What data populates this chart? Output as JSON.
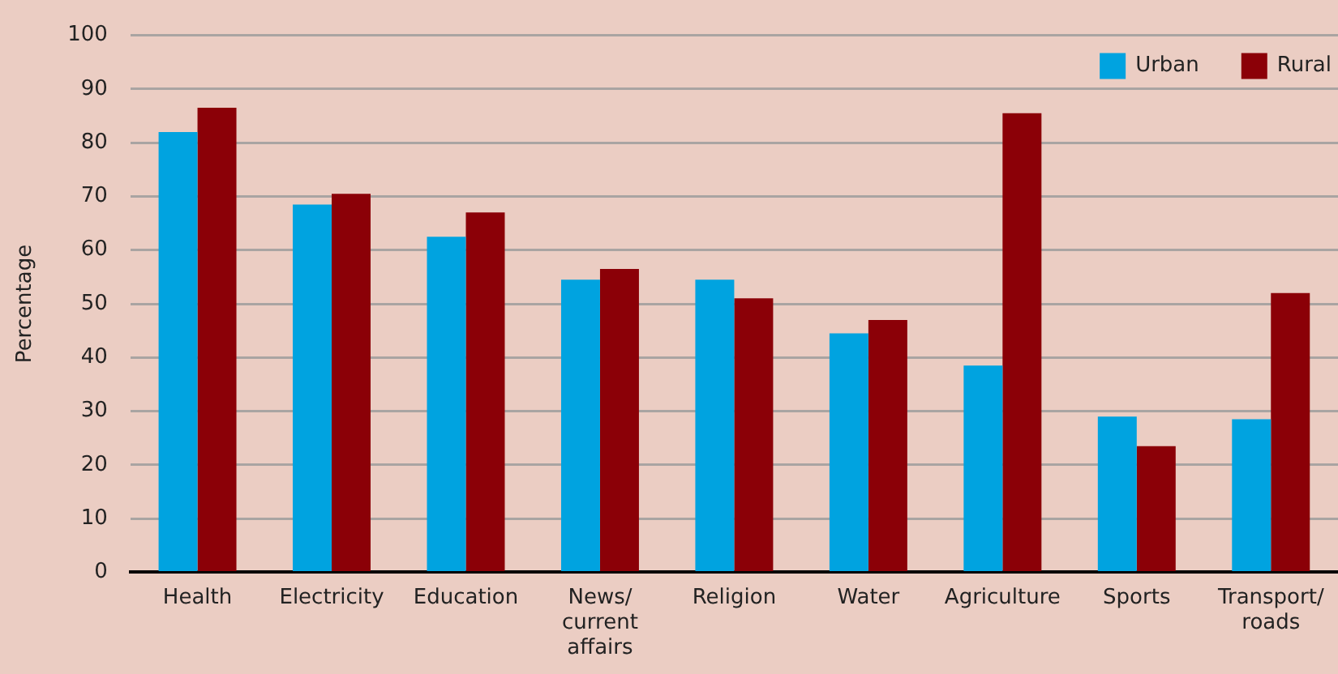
{
  "chart_data": {
    "type": "bar",
    "ylabel": "Percentage",
    "categories": [
      "Health",
      "Electricity",
      "Education",
      "News/ current affairs",
      "Religion",
      "Water",
      "Agriculture",
      "Sports",
      "Transport/ roads"
    ],
    "series": [
      {
        "name": "Urban",
        "color": "#00a3e0",
        "values": [
          82,
          68.5,
          62.5,
          54.5,
          54.5,
          44.5,
          38.5,
          29,
          28.5
        ]
      },
      {
        "name": "Rural",
        "color": "#8b0007",
        "values": [
          86.5,
          70.5,
          67,
          56.5,
          51,
          47,
          85.5,
          23.5,
          52
        ]
      }
    ],
    "ylim": [
      0,
      100
    ],
    "yticks": [
      0,
      10,
      20,
      30,
      40,
      50,
      60,
      70,
      80,
      90,
      100
    ],
    "grid": "y",
    "legend": "top right"
  }
}
